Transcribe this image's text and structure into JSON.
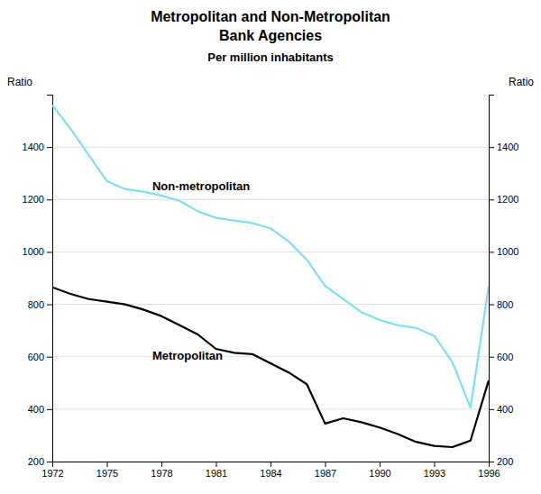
{
  "chart_data": {
    "type": "line",
    "title": [
      "Metropolitan and Non-Metropolitan",
      "Bank Agencies"
    ],
    "subtitle": "Per million inhabitants",
    "ylabel": "Ratio",
    "y2label": "Ratio",
    "x": [
      1972,
      1973,
      1974,
      1975,
      1976,
      1977,
      1978,
      1979,
      1980,
      1981,
      1982,
      1983,
      1984,
      1985,
      1986,
      1987,
      1988,
      1989,
      1990,
      1991,
      1992,
      1993,
      1994,
      1995,
      1996
    ],
    "series": [
      {
        "color": "#7de0f0",
        "values": [
          1560,
          1470,
          1370,
          1270,
          1240,
          1230,
          1215,
          1195,
          1155,
          1130,
          1120,
          1110,
          1090,
          1040,
          970,
          870,
          820,
          770,
          740,
          720,
          710,
          680,
          580,
          405,
          870
        ]
      },
      {
        "color": "#000000",
        "values": [
          865,
          840,
          820,
          810,
          800,
          780,
          755,
          720,
          685,
          630,
          615,
          610,
          575,
          540,
          495,
          345,
          365,
          350,
          330,
          305,
          275,
          260,
          255,
          280,
          510
        ]
      }
    ],
    "annotations": [
      {
        "text": "Non-metropolitan",
        "x": 1977.5,
        "y": 1235
      },
      {
        "text": "Metropolitan",
        "x": 1977.5,
        "y": 590
      }
    ],
    "xlim": [
      1972,
      1996
    ],
    "xticks": [
      1972,
      1975,
      1978,
      1981,
      1984,
      1987,
      1990,
      1993,
      1996
    ],
    "ylim": [
      200,
      1600
    ],
    "yticks": [
      200,
      400,
      600,
      800,
      1000,
      1200,
      1400
    ],
    "y2lim": [
      200,
      1600
    ],
    "y2ticks": [
      200,
      400,
      600,
      800,
      1000,
      1200,
      1400
    ],
    "grid": true
  }
}
